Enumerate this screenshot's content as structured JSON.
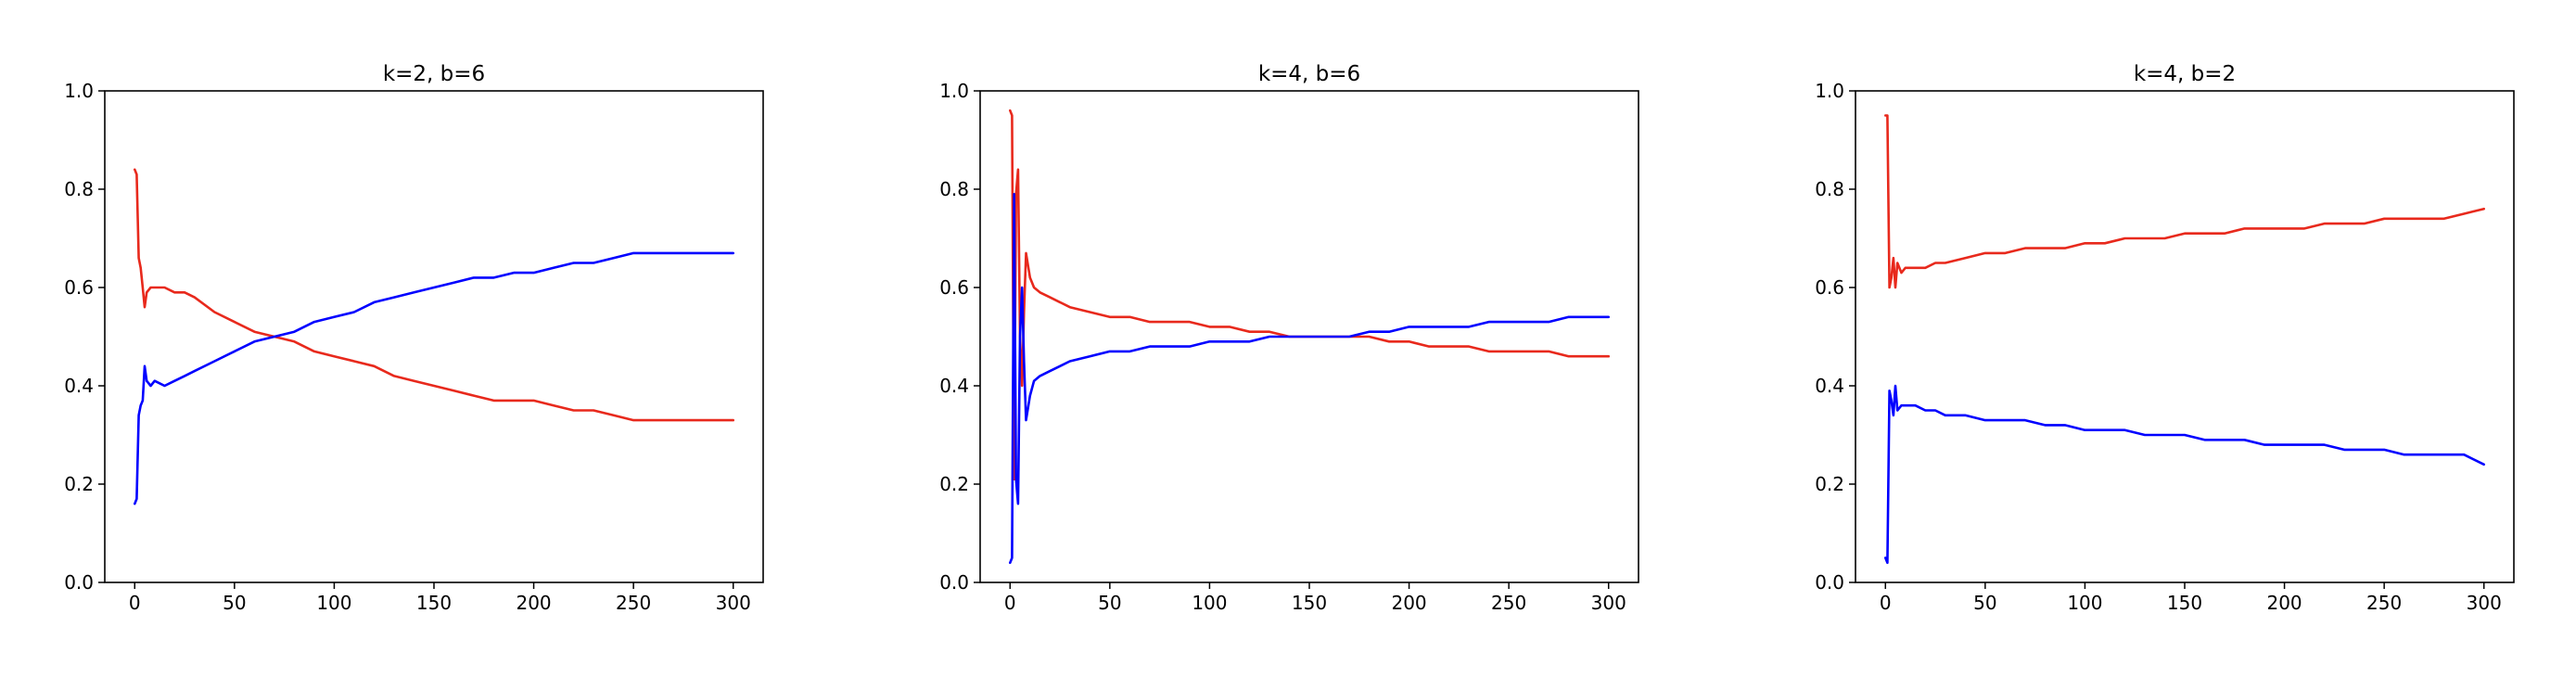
{
  "colors": {
    "red": "#e8291c",
    "blue": "#0000ff"
  },
  "chart_data": [
    {
      "type": "line",
      "title": "k=2, b=6",
      "xlabel": "",
      "ylabel": "",
      "xlim": [
        -15,
        315
      ],
      "ylim": [
        0.0,
        1.0
      ],
      "xticks": [
        0,
        50,
        100,
        150,
        200,
        250,
        300
      ],
      "xtick_labels": [
        "0",
        "50",
        "100",
        "150",
        "200",
        "250",
        "300"
      ],
      "yticks": [
        0.0,
        0.2,
        0.4,
        0.6,
        0.8,
        1.0
      ],
      "ytick_labels": [
        "0.0",
        "0.2",
        "0.4",
        "0.6",
        "0.8",
        "1.0"
      ],
      "grid": false,
      "series": [
        {
          "color": "#e8291c",
          "x": [
            0,
            1,
            2,
            3,
            4,
            5,
            6,
            8,
            10,
            15,
            20,
            25,
            30,
            40,
            50,
            60,
            70,
            80,
            90,
            100,
            110,
            120,
            130,
            140,
            150,
            160,
            170,
            180,
            190,
            200,
            210,
            220,
            230,
            240,
            250,
            260,
            270,
            280,
            290,
            300
          ],
          "y": [
            0.84,
            0.83,
            0.66,
            0.64,
            0.6,
            0.56,
            0.59,
            0.6,
            0.6,
            0.6,
            0.59,
            0.59,
            0.58,
            0.55,
            0.53,
            0.51,
            0.5,
            0.49,
            0.47,
            0.46,
            0.45,
            0.44,
            0.42,
            0.41,
            0.4,
            0.39,
            0.38,
            0.37,
            0.37,
            0.37,
            0.36,
            0.35,
            0.35,
            0.34,
            0.33,
            0.33,
            0.33,
            0.33,
            0.33,
            0.33
          ]
        },
        {
          "color": "#0000ff",
          "x": [
            0,
            1,
            2,
            3,
            4,
            5,
            6,
            8,
            10,
            15,
            20,
            25,
            30,
            40,
            50,
            60,
            70,
            80,
            90,
            100,
            110,
            120,
            130,
            140,
            150,
            160,
            170,
            180,
            190,
            200,
            210,
            220,
            230,
            240,
            250,
            260,
            270,
            280,
            290,
            300
          ],
          "y": [
            0.16,
            0.17,
            0.34,
            0.36,
            0.37,
            0.44,
            0.41,
            0.4,
            0.41,
            0.4,
            0.41,
            0.42,
            0.43,
            0.45,
            0.47,
            0.49,
            0.5,
            0.51,
            0.53,
            0.54,
            0.55,
            0.57,
            0.58,
            0.59,
            0.6,
            0.61,
            0.62,
            0.62,
            0.63,
            0.63,
            0.64,
            0.65,
            0.65,
            0.66,
            0.67,
            0.67,
            0.67,
            0.67,
            0.67,
            0.67
          ]
        }
      ]
    },
    {
      "type": "line",
      "title": "k=4, b=6",
      "xlabel": "",
      "ylabel": "",
      "xlim": [
        -15,
        315
      ],
      "ylim": [
        0.0,
        1.0
      ],
      "xticks": [
        0,
        50,
        100,
        150,
        200,
        250,
        300
      ],
      "xtick_labels": [
        "0",
        "50",
        "100",
        "150",
        "200",
        "250",
        "300"
      ],
      "yticks": [
        0.0,
        0.2,
        0.4,
        0.6,
        0.8,
        1.0
      ],
      "ytick_labels": [
        "0.0",
        "0.2",
        "0.4",
        "0.6",
        "0.8",
        "1.0"
      ],
      "grid": false,
      "series": [
        {
          "color": "#e8291c",
          "x": [
            0,
            1,
            2,
            3,
            4,
            5,
            6,
            7,
            8,
            10,
            12,
            15,
            20,
            25,
            30,
            40,
            50,
            60,
            70,
            80,
            90,
            100,
            110,
            120,
            130,
            140,
            150,
            160,
            170,
            180,
            190,
            200,
            210,
            220,
            230,
            240,
            250,
            260,
            270,
            280,
            290,
            300
          ],
          "y": [
            0.96,
            0.95,
            0.21,
            0.79,
            0.84,
            0.5,
            0.4,
            0.55,
            0.67,
            0.62,
            0.6,
            0.59,
            0.58,
            0.57,
            0.56,
            0.55,
            0.54,
            0.54,
            0.53,
            0.53,
            0.53,
            0.52,
            0.52,
            0.51,
            0.51,
            0.5,
            0.5,
            0.5,
            0.5,
            0.5,
            0.49,
            0.49,
            0.48,
            0.48,
            0.48,
            0.47,
            0.47,
            0.47,
            0.47,
            0.46,
            0.46,
            0.46
          ]
        },
        {
          "color": "#0000ff",
          "x": [
            0,
            1,
            2,
            3,
            4,
            5,
            6,
            7,
            8,
            10,
            12,
            15,
            20,
            25,
            30,
            40,
            50,
            60,
            70,
            80,
            90,
            100,
            110,
            120,
            130,
            140,
            150,
            160,
            170,
            180,
            190,
            200,
            210,
            220,
            230,
            240,
            250,
            260,
            270,
            280,
            290,
            300
          ],
          "y": [
            0.04,
            0.05,
            0.79,
            0.21,
            0.16,
            0.5,
            0.6,
            0.45,
            0.33,
            0.38,
            0.41,
            0.42,
            0.43,
            0.44,
            0.45,
            0.46,
            0.47,
            0.47,
            0.48,
            0.48,
            0.48,
            0.49,
            0.49,
            0.49,
            0.5,
            0.5,
            0.5,
            0.5,
            0.5,
            0.51,
            0.51,
            0.52,
            0.52,
            0.52,
            0.52,
            0.53,
            0.53,
            0.53,
            0.53,
            0.54,
            0.54,
            0.54
          ]
        }
      ]
    },
    {
      "type": "line",
      "title": "k=4, b=2",
      "xlabel": "",
      "ylabel": "",
      "xlim": [
        -15,
        315
      ],
      "ylim": [
        0.0,
        1.0
      ],
      "xticks": [
        0,
        50,
        100,
        150,
        200,
        250,
        300
      ],
      "xtick_labels": [
        "0",
        "50",
        "100",
        "150",
        "200",
        "250",
        "300"
      ],
      "yticks": [
        0.0,
        0.2,
        0.4,
        0.6,
        0.8,
        1.0
      ],
      "ytick_labels": [
        "0.0",
        "0.2",
        "0.4",
        "0.6",
        "0.8",
        "1.0"
      ],
      "grid": false,
      "series": [
        {
          "color": "#e8291c",
          "x": [
            0,
            1,
            2,
            3,
            4,
            5,
            6,
            8,
            10,
            15,
            20,
            25,
            30,
            40,
            50,
            60,
            70,
            80,
            90,
            100,
            110,
            120,
            130,
            140,
            150,
            160,
            170,
            180,
            190,
            200,
            210,
            220,
            230,
            240,
            250,
            260,
            270,
            280,
            290,
            300
          ],
          "y": [
            0.95,
            0.95,
            0.6,
            0.62,
            0.66,
            0.6,
            0.65,
            0.63,
            0.64,
            0.64,
            0.64,
            0.65,
            0.65,
            0.66,
            0.67,
            0.67,
            0.68,
            0.68,
            0.68,
            0.69,
            0.69,
            0.7,
            0.7,
            0.7,
            0.71,
            0.71,
            0.71,
            0.72,
            0.72,
            0.72,
            0.72,
            0.73,
            0.73,
            0.73,
            0.74,
            0.74,
            0.74,
            0.74,
            0.75,
            0.76
          ]
        },
        {
          "color": "#0000ff",
          "x": [
            0,
            1,
            2,
            3,
            4,
            5,
            6,
            8,
            10,
            15,
            20,
            25,
            30,
            40,
            50,
            60,
            70,
            80,
            90,
            100,
            110,
            120,
            130,
            140,
            150,
            160,
            170,
            180,
            190,
            200,
            210,
            220,
            230,
            240,
            250,
            260,
            270,
            280,
            290,
            300
          ],
          "y": [
            0.05,
            0.04,
            0.39,
            0.37,
            0.34,
            0.4,
            0.35,
            0.36,
            0.36,
            0.36,
            0.35,
            0.35,
            0.34,
            0.34,
            0.33,
            0.33,
            0.33,
            0.32,
            0.32,
            0.31,
            0.31,
            0.31,
            0.3,
            0.3,
            0.3,
            0.29,
            0.29,
            0.29,
            0.28,
            0.28,
            0.28,
            0.28,
            0.27,
            0.27,
            0.27,
            0.26,
            0.26,
            0.26,
            0.26,
            0.24
          ]
        }
      ]
    }
  ]
}
